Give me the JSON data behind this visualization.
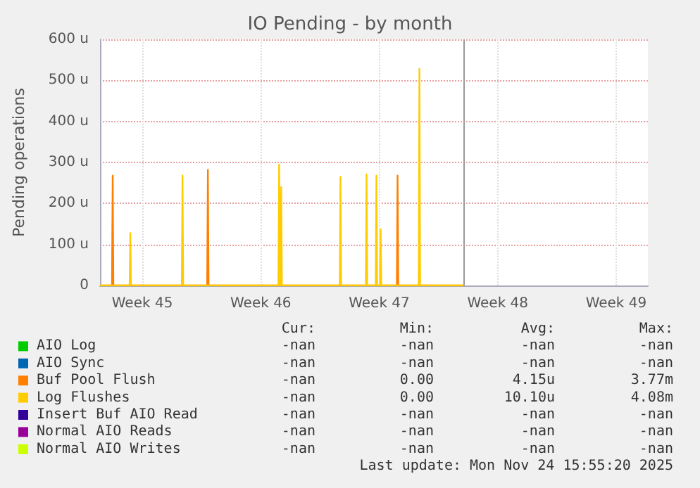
{
  "chart_data": {
    "type": "line",
    "title": "IO Pending - by month",
    "ylabel": "Pending operations",
    "xlim": [
      "2025-11-04T00:00",
      "2025-12-06T09:00"
    ],
    "xticks": [
      {
        "value": "2025-11-06T12:00",
        "label": "Week 45"
      },
      {
        "value": "2025-11-13T12:00",
        "label": "Week 46"
      },
      {
        "value": "2025-11-20T12:00",
        "label": "Week 47"
      },
      {
        "value": "2025-11-27T12:00",
        "label": "Week 48"
      },
      {
        "value": "2025-12-04T12:00",
        "label": "Week 49"
      }
    ],
    "ylim": [
      0,
      600
    ],
    "yticks": [
      {
        "value": 0,
        "label": "0"
      },
      {
        "value": 100,
        "label": "100 u"
      },
      {
        "value": 200,
        "label": "200 u"
      },
      {
        "value": 300,
        "label": "300 u"
      },
      {
        "value": 400,
        "label": "400 u"
      },
      {
        "value": 500,
        "label": "500 u"
      },
      {
        "value": 600,
        "label": "600 u"
      }
    ],
    "grid": true,
    "legend": "bottom",
    "marker": "none",
    "line_style": "solid",
    "ref_lines": [
      {
        "axis": "x",
        "value": "2025-11-25T12:00",
        "color": "#999999"
      }
    ],
    "series": [
      {
        "name": "AIO Log",
        "color": "#00cc00"
      },
      {
        "name": "AIO Sync",
        "color": "#0066b3"
      },
      {
        "name": "Buf Pool Flush",
        "color": "#ff8000",
        "x": [
          "2025-11-04T00:00",
          "2025-11-04T17:00",
          "2025-11-04T18:00",
          "2025-11-04T19:00",
          "2025-11-10T08:00",
          "2025-11-10T09:00",
          "2025-11-10T10:00",
          "2025-11-21T13:00",
          "2025-11-21T14:00",
          "2025-11-21T15:00",
          "2025-11-25T12:00"
        ],
        "values": [
          0,
          0,
          268,
          0,
          0,
          282,
          0,
          0,
          268,
          0,
          0
        ]
      },
      {
        "name": "Log Flushes",
        "color": "#ffcc00",
        "x": [
          "2025-11-04T00:00",
          "2025-11-05T18:00",
          "2025-11-05T19:00",
          "2025-11-05T20:00",
          "2025-11-08T20:00",
          "2025-11-08T21:00",
          "2025-11-08T22:00",
          "2025-11-14T13:00",
          "2025-11-14T14:00",
          "2025-11-14T15:30",
          "2025-11-14T17:00",
          "2025-11-14T18:00",
          "2025-11-18T04:00",
          "2025-11-18T05:00",
          "2025-11-18T06:00",
          "2025-11-19T17:00",
          "2025-11-19T18:00",
          "2025-11-19T19:00",
          "2025-11-20T07:00",
          "2025-11-20T08:00",
          "2025-11-20T09:00",
          "2025-11-20T13:00",
          "2025-11-20T14:00",
          "2025-11-20T15:00",
          "2025-11-22T20:00",
          "2025-11-22T21:00",
          "2025-11-22T22:00",
          "2025-11-25T12:00"
        ],
        "values": [
          0,
          0,
          128,
          0,
          0,
          268,
          0,
          0,
          295,
          0,
          240,
          0,
          0,
          265,
          0,
          0,
          271,
          0,
          0,
          268,
          0,
          0,
          137,
          0,
          0,
          528,
          0,
          0
        ]
      },
      {
        "name": "Insert Buf AIO Read",
        "color": "#330099"
      },
      {
        "name": "Normal AIO Reads",
        "color": "#990099"
      },
      {
        "name": "Normal AIO Writes",
        "color": "#ccff00"
      }
    ],
    "annotations": [
      "Cur: Min: Avg: Max:",
      "-nan -nan -nan -nan",
      "-nan -nan -nan -nan",
      "-nan 0.00 4.15u 3.77m",
      "-nan 0.00 10.10u 4.08m",
      "-nan -nan -nan -nan",
      "-nan -nan -nan -nan",
      "-nan -nan -nan -nan",
      "Last update: Mon Nov 24 15:55:20 2025"
    ]
  }
}
